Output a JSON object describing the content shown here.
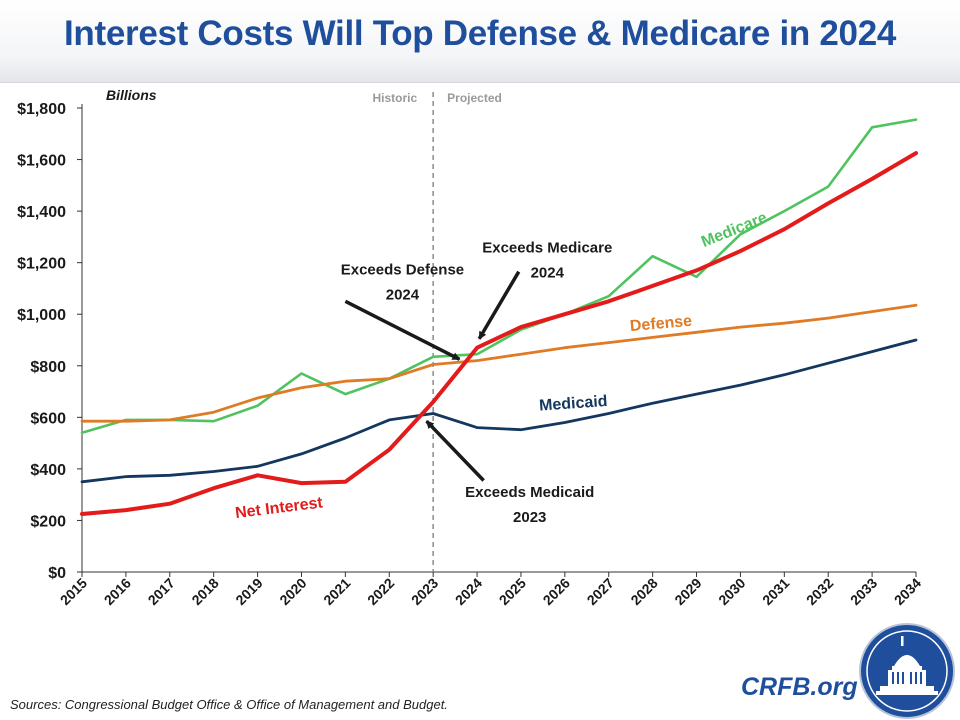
{
  "title": "Interest Costs Will Top Defense & Medicare in 2024",
  "sources": "Sources: Congressional Budget Office & Office of Management and Budget.",
  "brand": "CRFB.org",
  "chart_data": {
    "type": "line",
    "title": "Interest Costs Will Top Defense & Medicare in 2024",
    "ylabel": "Billions",
    "xlabel": "",
    "ylim": [
      0,
      1800
    ],
    "yticks": [
      0,
      200,
      400,
      600,
      800,
      1000,
      1200,
      1400,
      1600,
      1800
    ],
    "ytick_labels": [
      "$0",
      "$200",
      "$400",
      "$600",
      "$800",
      "$1,000",
      "$1,200",
      "$1,400",
      "$1,600",
      "$1,800"
    ],
    "x": [
      2015,
      2016,
      2017,
      2018,
      2019,
      2020,
      2021,
      2022,
      2023,
      2024,
      2025,
      2026,
      2027,
      2028,
      2029,
      2030,
      2031,
      2032,
      2033,
      2034
    ],
    "x_labels": [
      "2015",
      "2016",
      "2017",
      "2018",
      "2019",
      "2020",
      "2021",
      "2022",
      "2023",
      "2024",
      "2025",
      "2026",
      "2027",
      "2028",
      "2029",
      "2030",
      "2031",
      "2032",
      "2033",
      "2034"
    ],
    "divider": {
      "x": 2023,
      "left_label": "Historic",
      "right_label": "Projected"
    },
    "grid": false,
    "series": [
      {
        "name": "Medicare",
        "color": "#4fc35f",
        "values": [
          540,
          590,
          590,
          585,
          645,
          770,
          690,
          750,
          835,
          845,
          940,
          1000,
          1070,
          1225,
          1145,
          1310,
          1400,
          1495,
          1725,
          1755
        ]
      },
      {
        "name": "Defense",
        "color": "#e07b25",
        "values": [
          585,
          585,
          590,
          620,
          675,
          715,
          740,
          750,
          805,
          820,
          845,
          870,
          890,
          910,
          930,
          950,
          965,
          985,
          1010,
          1035
        ]
      },
      {
        "name": "Medicaid",
        "color": "#13375f",
        "values": [
          350,
          370,
          375,
          390,
          410,
          458,
          520,
          590,
          615,
          560,
          552,
          580,
          615,
          655,
          690,
          725,
          765,
          810,
          855,
          900
        ]
      },
      {
        "name": "Net Interest",
        "color": "#e31b1b",
        "values": [
          225,
          240,
          265,
          325,
          375,
          345,
          350,
          475,
          660,
          870,
          950,
          1000,
          1050,
          1110,
          1170,
          1245,
          1330,
          1430,
          1525,
          1625
        ]
      }
    ],
    "annotations": [
      {
        "line1": "Exceeds Defense",
        "line2": "2024"
      },
      {
        "line1": "Exceeds Medicare",
        "line2": "2024"
      },
      {
        "line1": "Exceeds Medicaid",
        "line2": "2023"
      }
    ]
  }
}
